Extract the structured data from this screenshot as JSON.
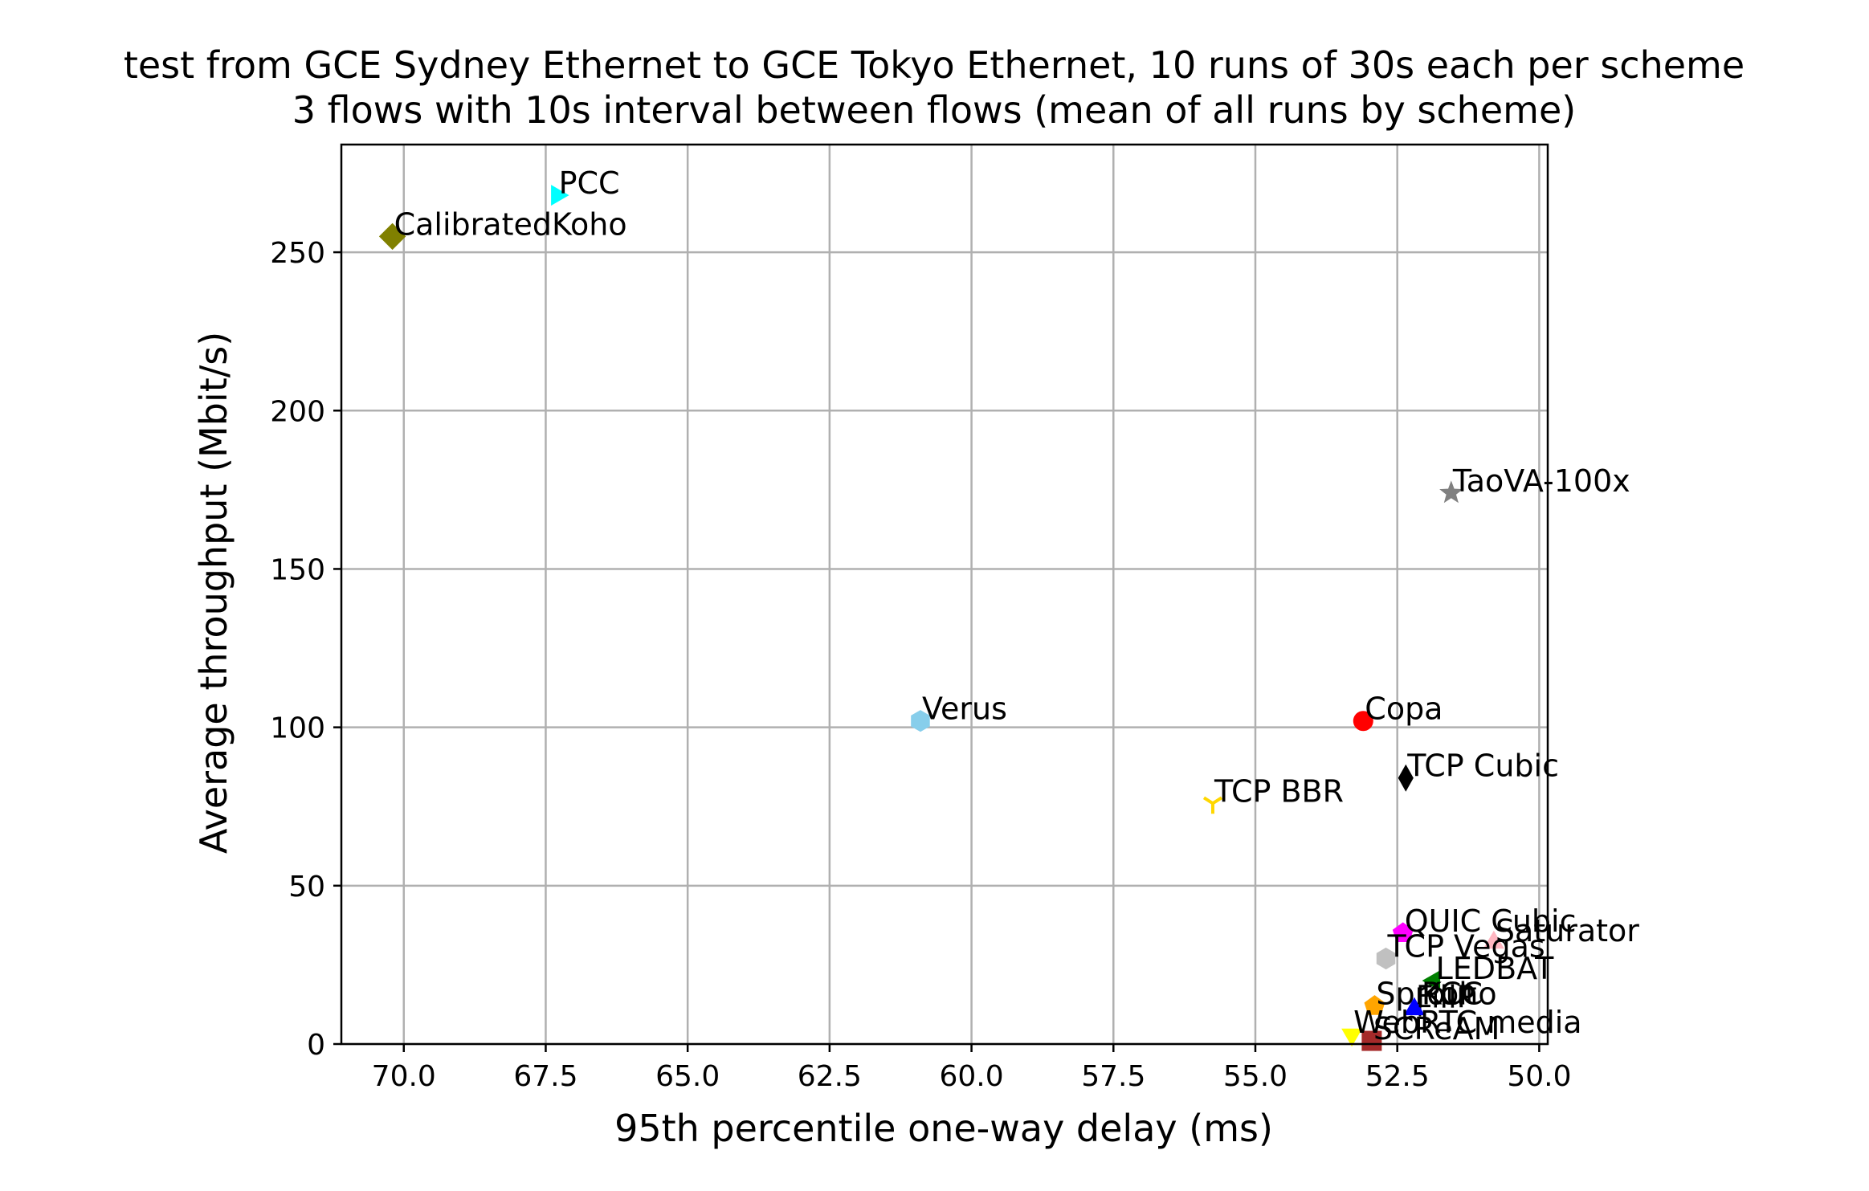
{
  "chart_data": {
    "type": "scatter",
    "title": "test from GCE Sydney Ethernet to GCE Tokyo Ethernet, 10 runs of 30s each per scheme",
    "subtitle": "3 flows with 10s interval between flows (mean of all runs by scheme)",
    "xlabel": "95th percentile one-way delay (ms)",
    "ylabel": "Average throughput (Mbit/s)",
    "x_inverted": true,
    "xlim": [
      71.1,
      49.85
    ],
    "ylim": [
      0,
      284
    ],
    "xticks": [
      70.0,
      67.5,
      65.0,
      62.5,
      60.0,
      57.5,
      55.0,
      52.5,
      50.0
    ],
    "xtick_labels": [
      "70.0",
      "67.5",
      "65.0",
      "62.5",
      "60.0",
      "57.5",
      "55.0",
      "52.5",
      "50.0"
    ],
    "yticks": [
      0,
      50,
      100,
      150,
      200,
      250
    ],
    "ytick_labels": [
      "0",
      "50",
      "100",
      "150",
      "200",
      "250"
    ],
    "grid": true,
    "points": [
      {
        "name": "PCC",
        "x": 67.3,
        "y": 268,
        "color": "#00ffff",
        "marker": "triangle-right"
      },
      {
        "name": "CalibratedKoho",
        "x": 70.2,
        "y": 255,
        "color": "#808000",
        "marker": "diamond"
      },
      {
        "name": "TaoVA-100x",
        "x": 51.55,
        "y": 174,
        "color": "#808080",
        "marker": "star"
      },
      {
        "name": "Verus",
        "x": 60.9,
        "y": 102,
        "color": "#87ceeb",
        "marker": "hexagon"
      },
      {
        "name": "Copa",
        "x": 53.1,
        "y": 102,
        "color": "#ff0000",
        "marker": "circle"
      },
      {
        "name": "TCP Cubic",
        "x": 52.35,
        "y": 84,
        "color": "#000000",
        "marker": "thin-diamond"
      },
      {
        "name": "TCP BBR",
        "x": 55.75,
        "y": 76,
        "color": "#ffd700",
        "marker": "tri-down"
      },
      {
        "name": "QUIC Cubic",
        "x": 52.4,
        "y": 35,
        "color": "#ff00ff",
        "marker": "pentagon"
      },
      {
        "name": "Saturator",
        "x": 50.8,
        "y": 32,
        "color": "#ffb6c1",
        "marker": "triangle-up"
      },
      {
        "name": "TCP Vegas",
        "x": 52.7,
        "y": 27,
        "color": "#c0c0c0",
        "marker": "hexagon"
      },
      {
        "name": "LEDBAT",
        "x": 51.85,
        "y": 20,
        "color": "#008000",
        "marker": "triangle-left"
      },
      {
        "name": "Sprout",
        "x": 52.9,
        "y": 12,
        "color": "#ffa500",
        "marker": "pentagon"
      },
      {
        "name": "PCC",
        "x": 52.1,
        "y": 12,
        "color": "#000000",
        "marker": "plus"
      },
      {
        "name": "FillP",
        "x": 52.2,
        "y": 11,
        "color": "#0000ff",
        "marker": "triangle-up"
      },
      {
        "name": "WebRTC media",
        "x": 53.3,
        "y": 3,
        "color": "#ffff00",
        "marker": "triangle-down"
      },
      {
        "name": "SCReAM",
        "x": 52.95,
        "y": 1,
        "color": "#a52a2a",
        "marker": "square"
      }
    ],
    "labels": [
      {
        "text": "PCC",
        "x": 67.3,
        "y": 268
      },
      {
        "text": "CalibratedKoho",
        "x": 70.2,
        "y": 255
      },
      {
        "text": "TaoVA-100x",
        "x": 51.55,
        "y": 174
      },
      {
        "text": "Verus",
        "x": 60.9,
        "y": 102
      },
      {
        "text": "Copa",
        "x": 53.1,
        "y": 102
      },
      {
        "text": "TCP Cubic",
        "x": 52.35,
        "y": 84
      },
      {
        "text": "TCP BBR",
        "x": 55.75,
        "y": 76
      },
      {
        "text": "QUIC Cubic",
        "x": 52.4,
        "y": 35
      },
      {
        "text": "Saturator",
        "x": 50.8,
        "y": 32
      },
      {
        "text": "TCP Vegas",
        "x": 52.7,
        "y": 27
      },
      {
        "text": "LEDBAT",
        "x": 51.85,
        "y": 20
      },
      {
        "text": "Sprout",
        "x": 52.9,
        "y": 12
      },
      {
        "text": "PCC",
        "x": 52.1,
        "y": 12
      },
      {
        "text": "Koho",
        "x": 52.1,
        "y": 12
      },
      {
        "text": "FillP",
        "x": 52.2,
        "y": 11
      },
      {
        "text": "WebRTC media",
        "x": 53.3,
        "y": 3
      },
      {
        "text": "SCReAM",
        "x": 52.95,
        "y": 1
      }
    ]
  }
}
